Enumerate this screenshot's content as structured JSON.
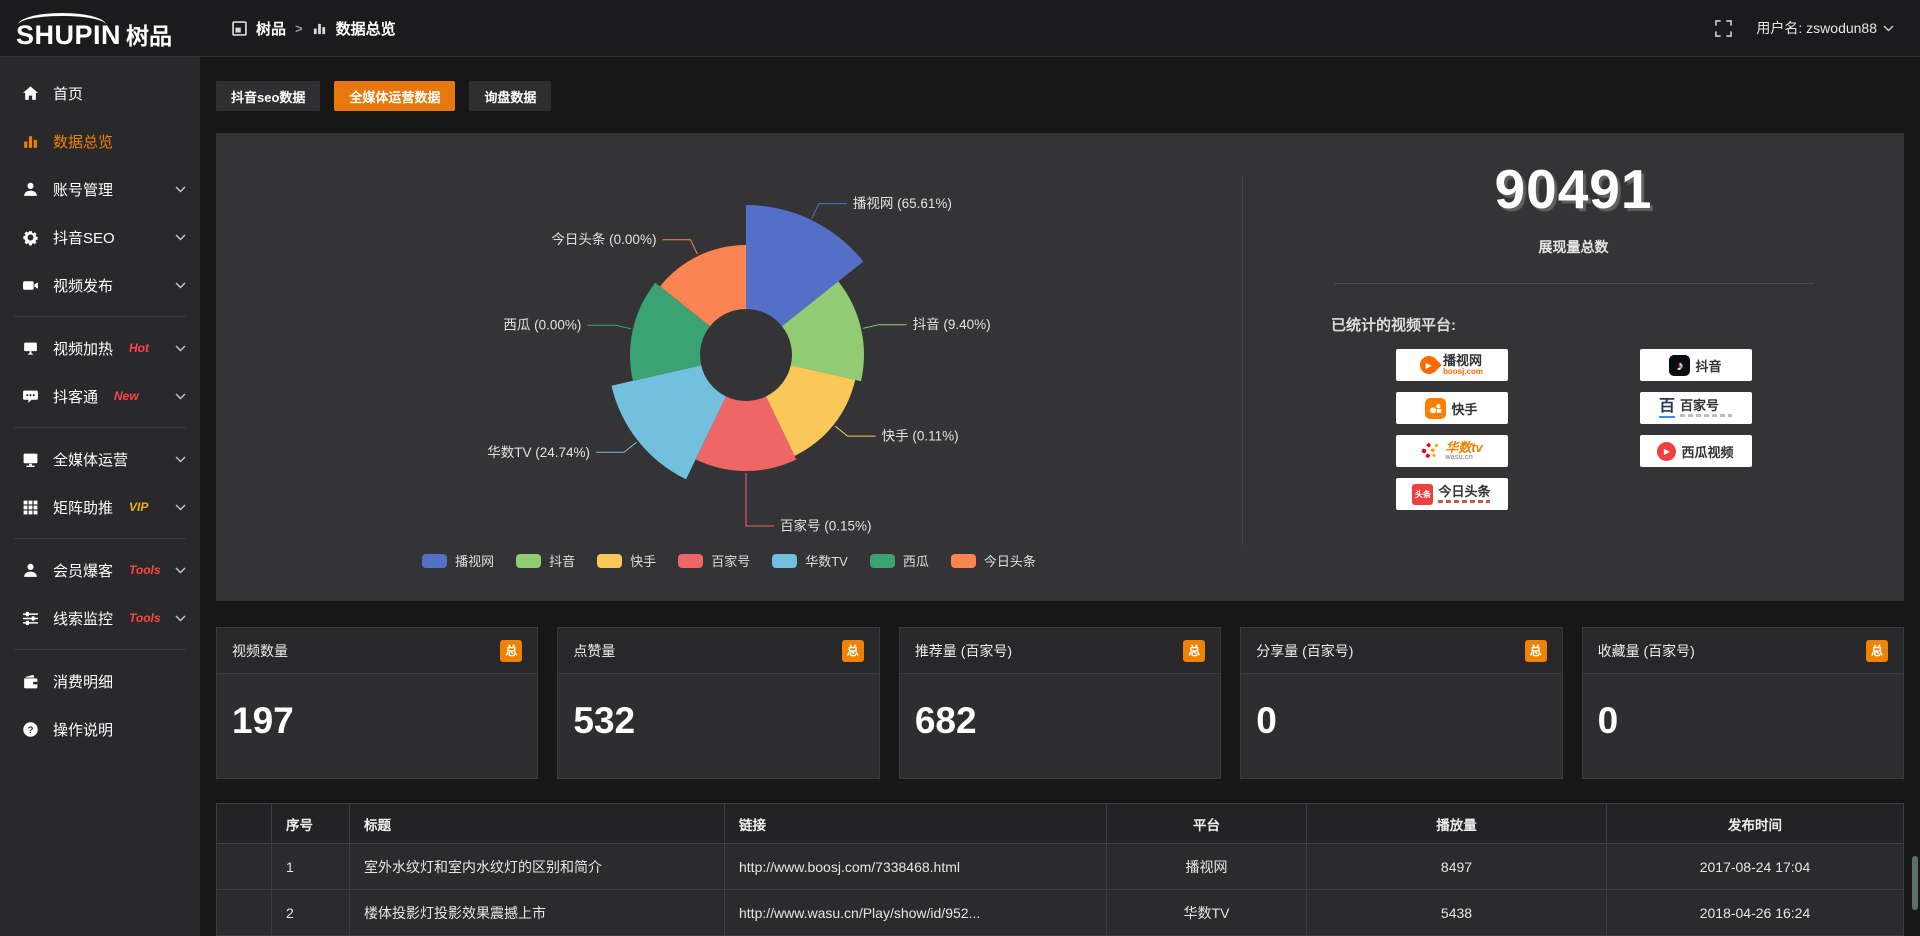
{
  "colors": {
    "accent_orange": "#e8770e",
    "sidebar_active": "#f08200",
    "link_orange": "#f0a13a",
    "badge_red": "#ff4545",
    "badge_gold": "#e7b416"
  },
  "topbar": {
    "logo_en": "SHUPIN",
    "logo_cn": "树品",
    "breadcrumb_root": "树品",
    "breadcrumb_sep": ">",
    "breadcrumb_current": "数据总览",
    "username": "用户名: zswodun88"
  },
  "sidebar": {
    "items": [
      {
        "label": "首页"
      },
      {
        "label": "数据总览"
      },
      {
        "label": "账号管理"
      },
      {
        "label": "抖音SEO"
      },
      {
        "label": "视频发布"
      },
      {
        "label": "视频加热",
        "badge": "Hot"
      },
      {
        "label": "抖客通",
        "badge": "New"
      },
      {
        "label": "全媒体运营"
      },
      {
        "label": "矩阵助推",
        "badge": "VIP"
      },
      {
        "label": "会员爆客",
        "badge": "Tools"
      },
      {
        "label": "线索监控",
        "badge": "Tools"
      },
      {
        "label": "消费明细"
      },
      {
        "label": "操作说明"
      }
    ]
  },
  "tabs": [
    {
      "label": "抖音seo数据",
      "active": false
    },
    {
      "label": "全媒体运营数据",
      "active": true
    },
    {
      "label": "询盘数据",
      "active": false
    }
  ],
  "chart_data": {
    "type": "pie",
    "variant": "nightingale-rose",
    "categories": [
      "播视网",
      "抖音",
      "快手",
      "百家号",
      "华数TV",
      "西瓜",
      "今日头条"
    ],
    "values_percent": [
      65.61,
      9.4,
      0.11,
      0.15,
      24.74,
      0.0,
      0.0
    ],
    "slices": [
      {
        "name": "播视网",
        "percent": "65.61",
        "color": "#5470c6",
        "radius": 150
      },
      {
        "name": "抖音",
        "percent": "9.40",
        "color": "#91cc75",
        "radius": 118
      },
      {
        "name": "快手",
        "percent": "0.11",
        "color": "#fac858",
        "radius": 112
      },
      {
        "name": "百家号",
        "percent": "0.15",
        "color": "#ee6666",
        "radius": 116
      },
      {
        "name": "华数TV",
        "percent": "24.74",
        "color": "#73c0de",
        "radius": 138
      },
      {
        "name": "西瓜",
        "percent": "0.00",
        "color": "#3ba272",
        "radius": 116
      },
      {
        "name": "今日头条",
        "percent": "0.00",
        "color": "#fc8452",
        "radius": 110
      }
    ],
    "legend": [
      "播视网",
      "抖音",
      "快手",
      "百家号",
      "华数TV",
      "西瓜",
      "今日头条"
    ],
    "legend_position": "bottom",
    "inner_radius": 46,
    "equal_angle_slices": true
  },
  "summary": {
    "total": "90491",
    "total_label": "展现量总数",
    "platforms_label": "已统计的视频平台:"
  },
  "platform_badges": [
    {
      "name": "播视网",
      "sub": "boosj.com"
    },
    {
      "name": "抖音"
    },
    {
      "name": "快手"
    },
    {
      "name": "百家号",
      "logo_text": "百"
    },
    {
      "name": "华数tv",
      "sub": "wasu.cn"
    },
    {
      "name": "西瓜视频"
    },
    {
      "name": "今日头条",
      "logo_text": "头条"
    }
  ],
  "cards": [
    {
      "title": "视频数量",
      "badge": "总",
      "value": "197"
    },
    {
      "title": "点赞量",
      "badge": "总",
      "value": "532"
    },
    {
      "title": "推荐量 (百家号)",
      "badge": "总",
      "value": "682"
    },
    {
      "title": "分享量 (百家号)",
      "badge": "总",
      "value": "0"
    },
    {
      "title": "收藏量 (百家号)",
      "badge": "总",
      "value": "0"
    }
  ],
  "table": {
    "headers": [
      "序号",
      "标题",
      "链接",
      "平台",
      "播放量",
      "发布时间"
    ],
    "rows": [
      {
        "no": "1",
        "title": "室外水纹灯和室内水纹灯的区别和简介",
        "link": "http://www.boosj.com/7338468.html",
        "platform": "播视网",
        "plays": "8497",
        "time": "2017-08-24 17:04"
      },
      {
        "no": "2",
        "title": "楼体投影灯投影效果震撼上市",
        "link": "http://www.wasu.cn/Play/show/id/952...",
        "platform": "华数TV",
        "plays": "5438",
        "time": "2018-04-26 16:24"
      }
    ]
  }
}
